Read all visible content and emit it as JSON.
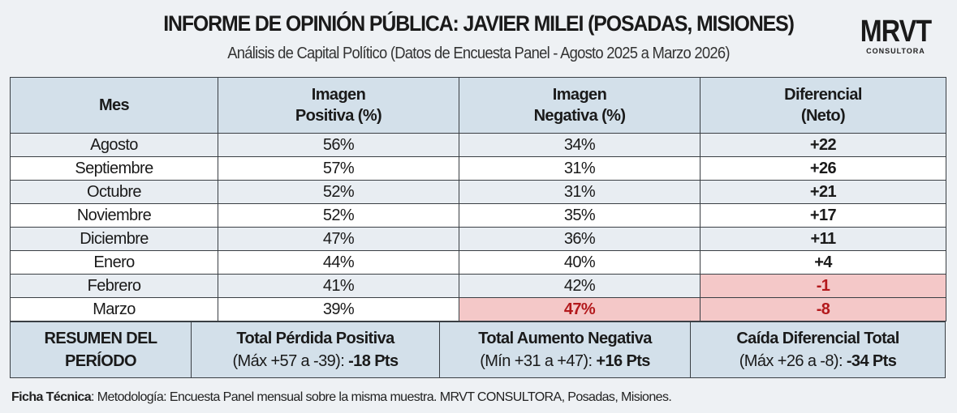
{
  "header": {
    "title": "INFORME DE OPINIÓN PÚBLICA: JAVIER MILEI (POSADAS, MISIONES)",
    "subtitle": "Análisis de Capital Político (Datos de Encuesta Panel - Agosto 2025 a Marzo 2026)"
  },
  "logo": {
    "main": "MRVT",
    "sub": "CONSULTORA"
  },
  "table": {
    "columns": [
      {
        "l1": "Mes",
        "l2": ""
      },
      {
        "l1": "Imagen",
        "l2": "Positiva (%)"
      },
      {
        "l1": "Imagen",
        "l2": "Negativa (%)"
      },
      {
        "l1": "Diferencial",
        "l2": "(Neto)"
      }
    ],
    "rows": [
      {
        "mes": "Agosto",
        "pos": "56%",
        "neg": "34%",
        "dif": "+22"
      },
      {
        "mes": "Septiembre",
        "pos": "57%",
        "neg": "31%",
        "dif": "+26"
      },
      {
        "mes": "Octubre",
        "pos": "52%",
        "neg": "31%",
        "dif": "+21"
      },
      {
        "mes": "Noviembre",
        "pos": "52%",
        "neg": "35%",
        "dif": "+17"
      },
      {
        "mes": "Diciembre",
        "pos": "47%",
        "neg": "36%",
        "dif": "+11"
      },
      {
        "mes": "Enero",
        "pos": "44%",
        "neg": "40%",
        "dif": "+4"
      },
      {
        "mes": "Febrero",
        "pos": "41%",
        "neg": "42%",
        "dif": "-1"
      },
      {
        "mes": "Marzo",
        "pos": "39%",
        "neg": "47%",
        "dif": "-8"
      }
    ]
  },
  "summary": {
    "label_l1": "RESUMEN DEL",
    "label_l2": "PERÍODO",
    "items": [
      {
        "title": "Total Pérdida Positiva",
        "detail": "(Máx +57 a -39): ",
        "value": "-18 Pts"
      },
      {
        "title": "Total Aumento Negativa",
        "detail": "(Mín +31 a +47): ",
        "value": "+16 Pts"
      },
      {
        "title": "Caída Diferencial Total",
        "detail": "(Máx +26 a -8): ",
        "value": "-34 Pts"
      }
    ]
  },
  "footer": {
    "label": "Ficha Técnica",
    "text": ": Metodología: Encuesta Panel mensual sobre la misma muestra. MRVT CONSULTORA, Posadas, Misiones."
  },
  "colors": {
    "header_bg": "#d3e0ea",
    "alert_bg": "#f4c8c8",
    "alert_text": "#b3191c"
  }
}
